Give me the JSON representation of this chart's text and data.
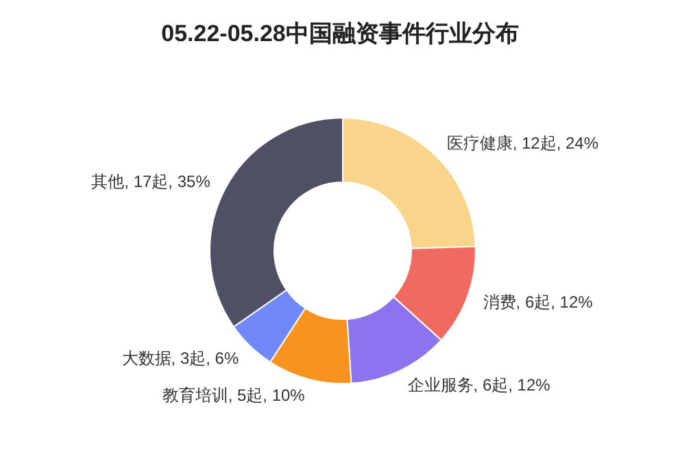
{
  "chart_data": {
    "type": "donut",
    "title": "05.22-05.28中国融资事件行业分布",
    "categories": [
      "医疗健康",
      "消费",
      "企业服务",
      "教育培训",
      "大数据",
      "其他"
    ],
    "values": [
      12,
      6,
      6,
      5,
      3,
      17
    ],
    "value_labels": [
      "12起, 24%",
      "6起, 12%",
      "6起, 12%",
      "5起, 10%",
      "3起, 6%",
      "17起, 35%"
    ],
    "colors": [
      "#f9d48b",
      "#f06a60",
      "#8c73ef",
      "#f7931e",
      "#7189f6",
      "#4f5063"
    ]
  }
}
